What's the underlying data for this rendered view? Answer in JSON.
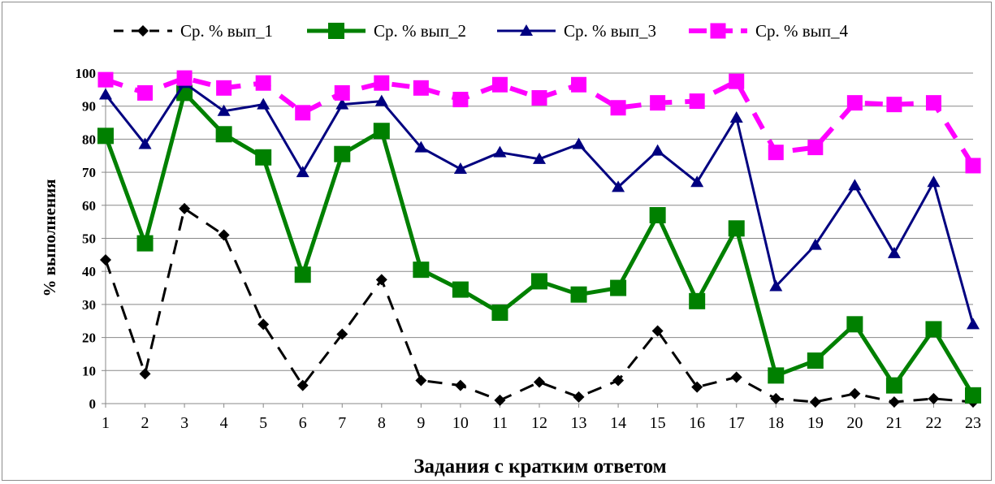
{
  "chart_data": {
    "type": "line",
    "title": "",
    "xlabel": "Задания с кратким ответом",
    "ylabel": "% выполнения",
    "categories": [
      "1",
      "2",
      "3",
      "4",
      "5",
      "6",
      "7",
      "8",
      "9",
      "10",
      "11",
      "12",
      "13",
      "14",
      "15",
      "16",
      "17",
      "18",
      "19",
      "20",
      "21",
      "22",
      "23"
    ],
    "ylim": [
      0,
      100
    ],
    "yticks": [
      0,
      10,
      20,
      30,
      40,
      50,
      60,
      70,
      80,
      90,
      100
    ],
    "grid": true,
    "legend_position": "top",
    "series": [
      {
        "name": "Ср. % вып_1",
        "color": "#000000",
        "line_style": "dashed",
        "marker": "diamond",
        "values": [
          43.5,
          9,
          59,
          51,
          24,
          5.5,
          21,
          37.5,
          7,
          5.5,
          1,
          6.5,
          2,
          7,
          22,
          5,
          8,
          1.5,
          0.5,
          3,
          0.5,
          1.5,
          0.5
        ]
      },
      {
        "name": "Ср. % вып_2",
        "color": "#008000",
        "line_style": "solid",
        "marker": "square",
        "values": [
          81,
          48.5,
          94,
          81.5,
          74.5,
          39,
          75.5,
          82.5,
          40.5,
          34.5,
          27.5,
          37,
          33,
          35,
          57,
          31,
          53,
          8.5,
          13,
          24,
          5.5,
          22.5,
          2.5
        ]
      },
      {
        "name": "Ср. % вып_3",
        "color": "#000080",
        "line_style": "solid",
        "marker": "triangle",
        "values": [
          93.5,
          78.5,
          97,
          88.5,
          90.5,
          70,
          90.5,
          91.5,
          77.5,
          71,
          76,
          74,
          78.5,
          65.5,
          76.5,
          67,
          86.5,
          35.5,
          48,
          66,
          45.5,
          67,
          24
        ]
      },
      {
        "name": "Ср. % вып_4",
        "color": "#ff00ff",
        "line_style": "dashed",
        "marker": "square",
        "values": [
          98,
          94,
          98.5,
          95.5,
          97,
          88,
          94,
          97,
          95.5,
          92,
          96.5,
          92.5,
          96.5,
          89.5,
          91,
          91.5,
          97.5,
          76,
          77.5,
          91,
          90.5,
          91,
          72
        ]
      }
    ]
  }
}
